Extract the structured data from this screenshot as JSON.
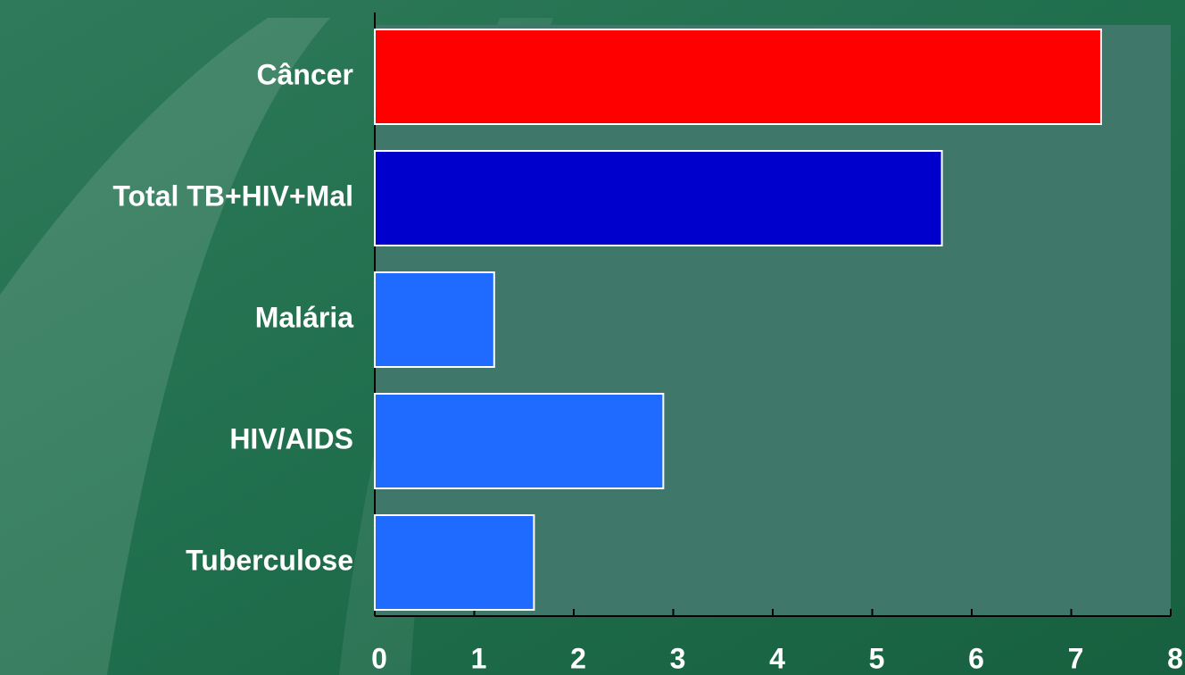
{
  "chart_data": {
    "type": "barh",
    "categories": [
      "Câncer",
      "Total TB+HIV+Mal",
      "Malária",
      "HIV/AIDS",
      "Tuberculose"
    ],
    "values": [
      7.3,
      5.7,
      1.2,
      2.9,
      1.6
    ],
    "colors": [
      "#ff0000",
      "#0000cc",
      "#1f6bff",
      "#1f6bff",
      "#1f6bff"
    ],
    "xlim": [
      0,
      8
    ],
    "xticks": [
      0,
      1,
      2,
      3,
      4,
      5,
      6,
      7,
      8
    ]
  }
}
